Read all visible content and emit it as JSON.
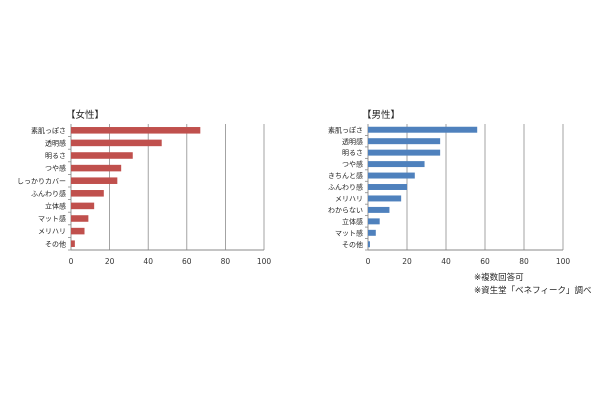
{
  "chart_data": [
    {
      "type": "bar",
      "orientation": "horizontal",
      "title": "【女性】",
      "categories": [
        "素肌っぽさ",
        "透明感",
        "明るさ",
        "つや感",
        "しっかりカバー",
        "ふんわり感",
        "立体感",
        "マット感",
        "メリハリ",
        "その他"
      ],
      "values": [
        67,
        47,
        32,
        26,
        24,
        17,
        12,
        9,
        7,
        2
      ],
      "xlim": [
        0,
        100
      ],
      "xticks": [
        0,
        20,
        40,
        60,
        80,
        100
      ],
      "grid": true,
      "color": "#c0504d"
    },
    {
      "type": "bar",
      "orientation": "horizontal",
      "title": "【男性】",
      "categories": [
        "素肌っぽさ",
        "透明感",
        "明るさ",
        "つや感",
        "きちんと感",
        "ふんわり感",
        "メリハリ",
        "わからない",
        "立体感",
        "マット感",
        "その他"
      ],
      "values": [
        56,
        37,
        37,
        29,
        24,
        20,
        17,
        11,
        6,
        4,
        1
      ],
      "xlim": [
        0,
        100
      ],
      "xticks": [
        0,
        20,
        40,
        60,
        80,
        100
      ],
      "grid": true,
      "color": "#4f81bd"
    }
  ],
  "notes": [
    "※複数回答可",
    "※資生堂「ベネフィーク」調べ"
  ]
}
